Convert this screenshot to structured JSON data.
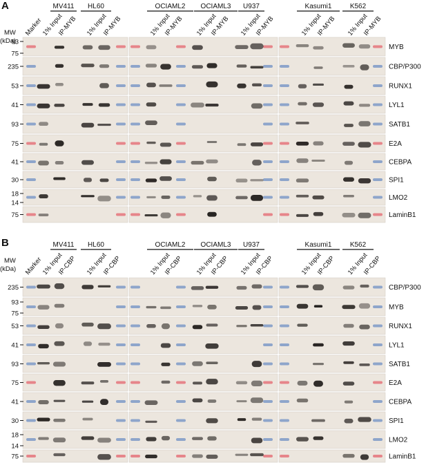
{
  "panels": [
    {
      "label": "A",
      "mw_header": [
        "MW",
        "(kDa)"
      ],
      "marker_label": "Marker",
      "cell_lines": [
        {
          "name": "MV411",
          "lanes": [
            "1% Input",
            "IP-MYB"
          ]
        },
        {
          "name": "HL60",
          "lanes": [
            "1% Input",
            "IP-MYB"
          ]
        },
        {
          "name": "OCIAML2",
          "lanes": [
            "1% Input",
            "IP-MYB"
          ]
        },
        {
          "name": "OCIAML3",
          "lanes": [
            "1% Input",
            "IP-MYB"
          ]
        },
        {
          "name": "U937",
          "lanes": [
            "1% Input",
            "IP-MYB"
          ]
        },
        {
          "name": "Kasumi1",
          "lanes": [
            "1% Input",
            "IP-MYB"
          ]
        },
        {
          "name": "K562",
          "lanes": [
            "1% Input",
            "IP-MYB"
          ]
        }
      ],
      "rows": [
        {
          "protein": "MYB",
          "mw": [
            "93",
            "75"
          ]
        },
        {
          "protein": "CBP/P300",
          "mw": [
            "235"
          ]
        },
        {
          "protein": "RUNX1",
          "mw": [
            "53"
          ]
        },
        {
          "protein": "LYL1",
          "mw": [
            "41"
          ]
        },
        {
          "protein": "SATB1",
          "mw": [
            "93"
          ]
        },
        {
          "protein": "E2A",
          "mw": [
            "75"
          ]
        },
        {
          "protein": "CEBPA",
          "mw": [
            "41"
          ]
        },
        {
          "protein": "SPI1",
          "mw": [
            "30"
          ]
        },
        {
          "protein": "LMO2",
          "mw": [
            "18",
            "14"
          ]
        },
        {
          "protein": "LaminB1",
          "mw": [
            "75"
          ]
        }
      ]
    },
    {
      "label": "B",
      "mw_header": [
        "MW",
        "(kDa)"
      ],
      "marker_label": "Marker",
      "cell_lines": [
        {
          "name": "MV411",
          "lanes": [
            "1% Input",
            "IP-CBP"
          ]
        },
        {
          "name": "HL60",
          "lanes": [
            "1% Input",
            "IP-CBP"
          ]
        },
        {
          "name": "OCIAML2",
          "lanes": [
            "1% Input",
            "IP-CBP"
          ]
        },
        {
          "name": "OCIAML3",
          "lanes": [
            "1% Input",
            "IP-CBP"
          ]
        },
        {
          "name": "U937",
          "lanes": [
            "1% Input",
            "IP-CBP"
          ]
        },
        {
          "name": "Kasumi1",
          "lanes": [
            "1% Input",
            "IP-CBP"
          ]
        },
        {
          "name": "K562",
          "lanes": [
            "1% Input",
            "IP-CBP"
          ]
        }
      ],
      "rows": [
        {
          "protein": "CBP/P300",
          "mw": [
            "235"
          ]
        },
        {
          "protein": "MYB",
          "mw": [
            "93",
            "75"
          ]
        },
        {
          "protein": "RUNX1",
          "mw": [
            "53"
          ]
        },
        {
          "protein": "LYL1",
          "mw": [
            "41"
          ]
        },
        {
          "protein": "SATB1",
          "mw": [
            "93"
          ]
        },
        {
          "protein": "E2A",
          "mw": [
            "75"
          ]
        },
        {
          "protein": "CEBPA",
          "mw": [
            "41"
          ]
        },
        {
          "protein": "SPI1",
          "mw": [
            "30"
          ]
        },
        {
          "protein": "LMO2",
          "mw": [
            "18",
            "14"
          ]
        },
        {
          "protein": "LaminB1",
          "mw": [
            "75"
          ]
        }
      ]
    }
  ],
  "colors": {
    "blot_background": "#ece6de",
    "band": "#1e1a18",
    "marker_blue": "#6f8fc4",
    "marker_red": "#e4646e"
  }
}
